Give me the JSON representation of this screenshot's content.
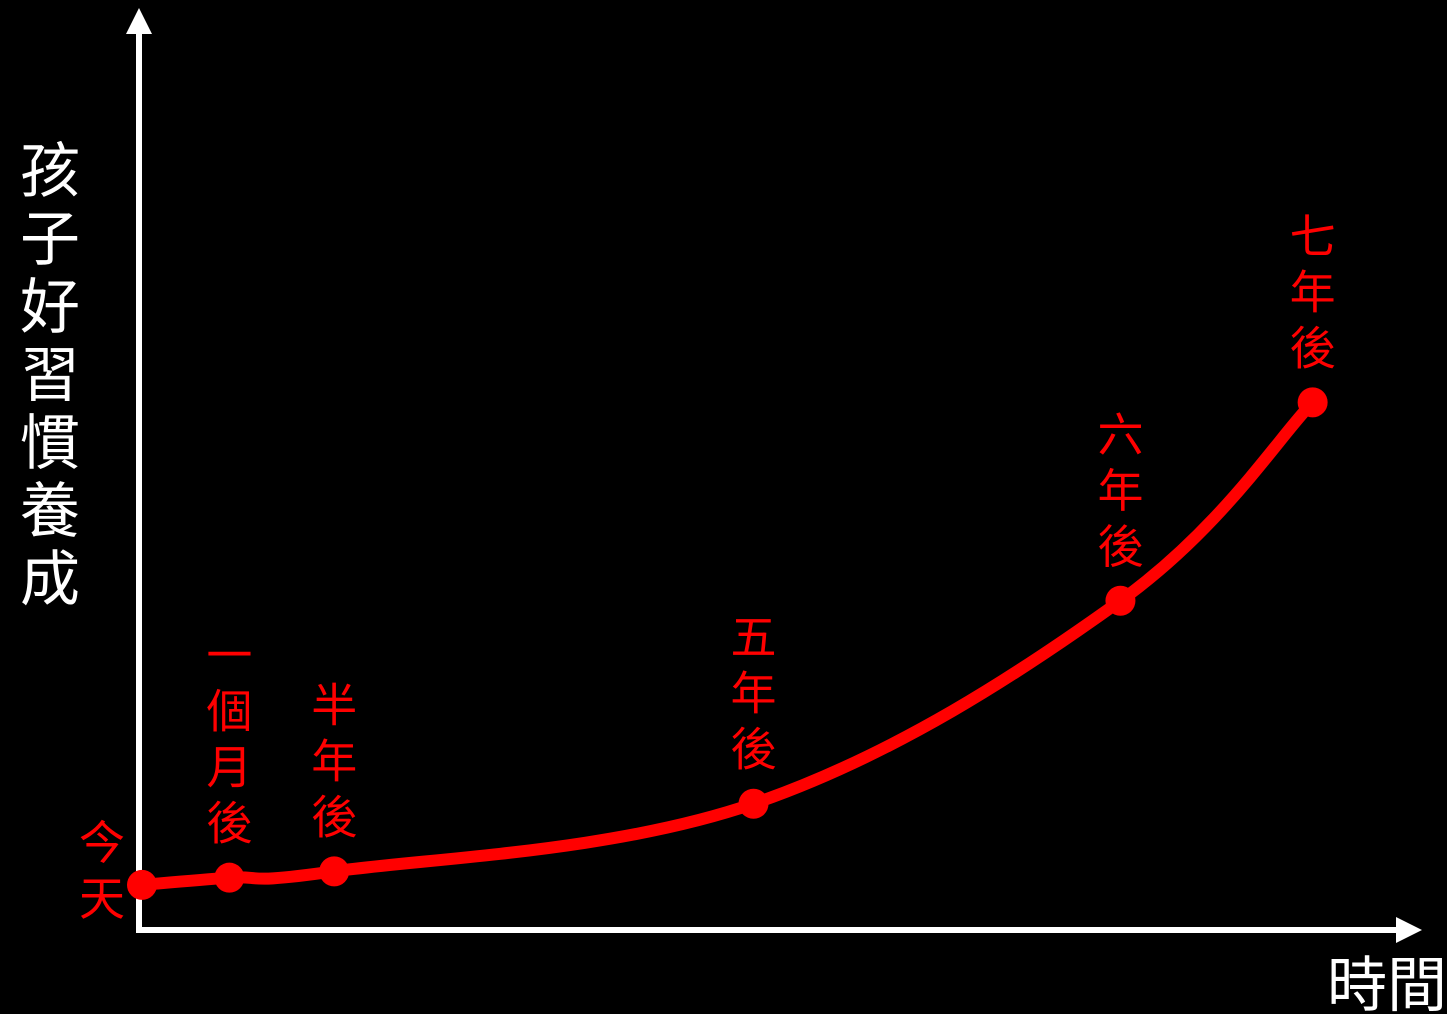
{
  "chart_data": {
    "type": "line",
    "title": "",
    "xlabel": "時間",
    "ylabel": "孩子好習慣養成",
    "grid": false,
    "legend": "none",
    "y_ticks_shown": false,
    "x_ticks_shown": false,
    "points": [
      {
        "label": "今天",
        "x": 0,
        "y": 5
      },
      {
        "label": "一個月後",
        "x": 0.5,
        "y": 5.8
      },
      {
        "label": "半年後",
        "x": 1.1,
        "y": 6.5
      },
      {
        "label": "五年後",
        "x": 3.5,
        "y": 14
      },
      {
        "label": "六年後",
        "x": 5.6,
        "y": 36.5
      },
      {
        "label": "七年後",
        "x": 6.7,
        "y": 58.5
      }
    ],
    "xlim": [
      0,
      7.2
    ],
    "ylim": [
      0,
      100
    ]
  },
  "colors": {
    "background": "#000000",
    "axis": "#ffffff",
    "series": "#ff0000"
  }
}
